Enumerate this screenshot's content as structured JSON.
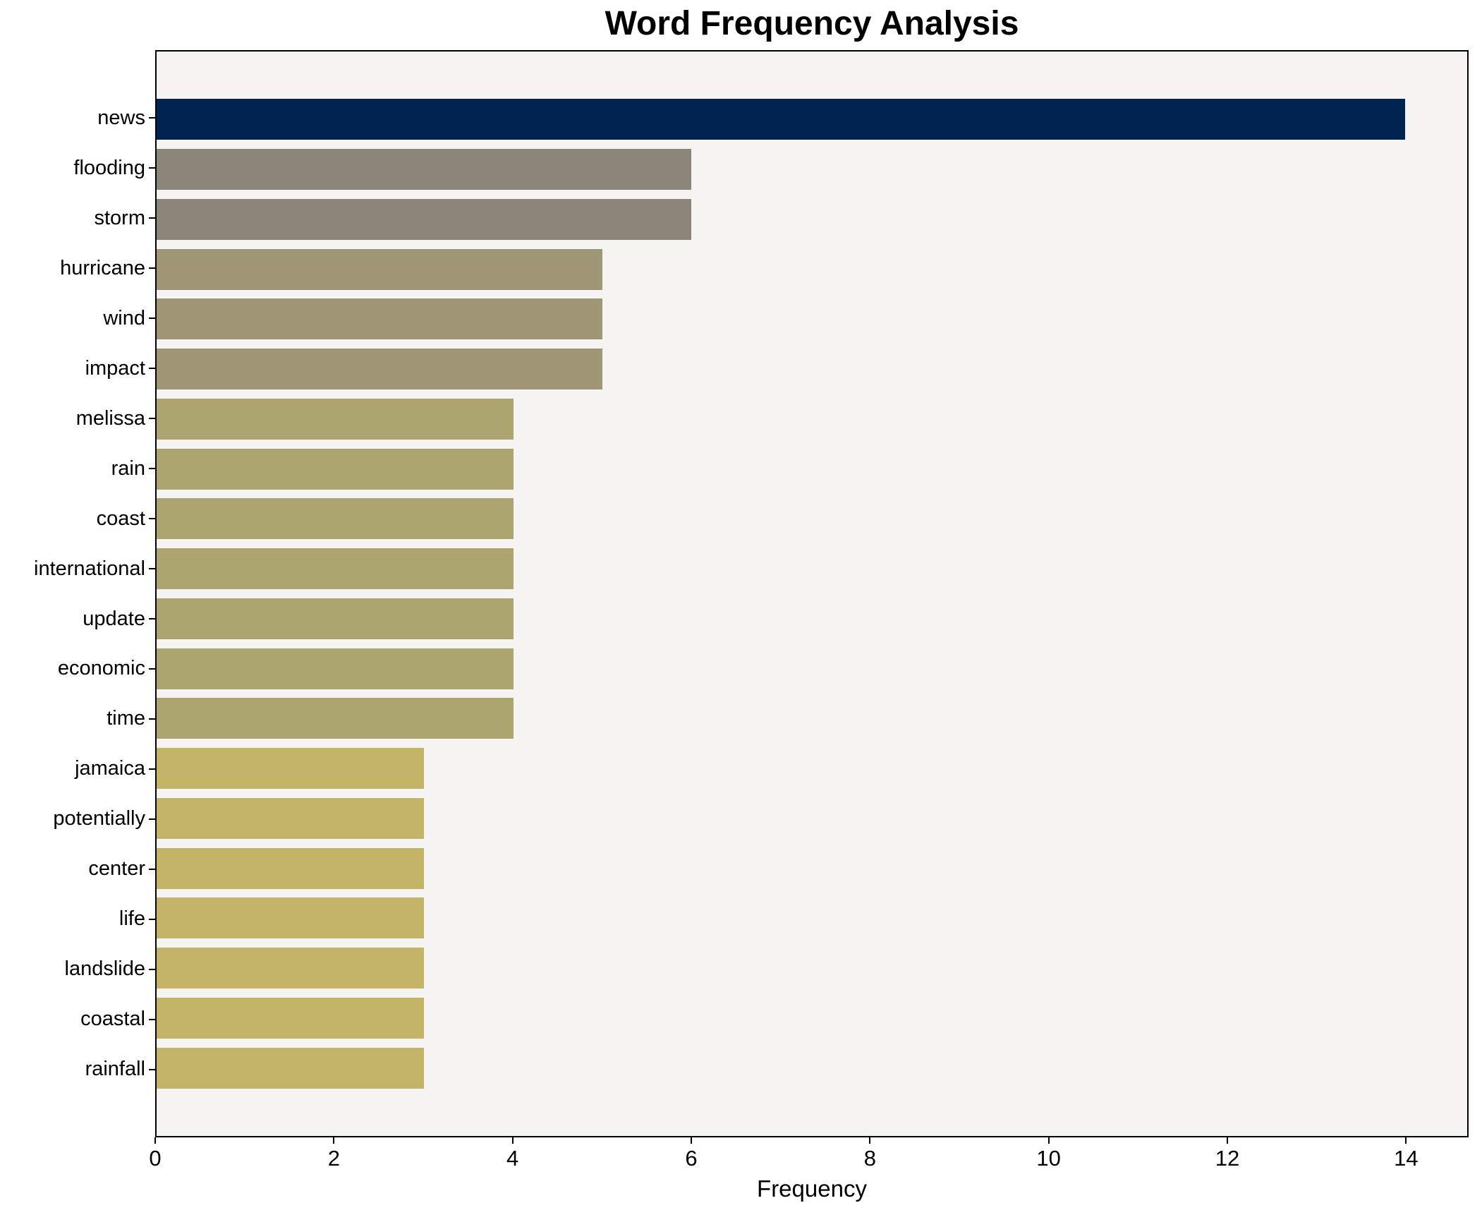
{
  "title": "Word Frequency Analysis",
  "chart_data": {
    "type": "bar",
    "orientation": "horizontal",
    "title": "Word Frequency Analysis",
    "xlabel": "Frequency",
    "ylabel": "",
    "categories": [
      "news",
      "flooding",
      "storm",
      "hurricane",
      "wind",
      "impact",
      "melissa",
      "rain",
      "coast",
      "international",
      "update",
      "economic",
      "time",
      "jamaica",
      "potentially",
      "center",
      "life",
      "landslide",
      "coastal",
      "rainfall"
    ],
    "values": [
      14,
      6,
      6,
      5,
      5,
      5,
      4,
      4,
      4,
      4,
      4,
      4,
      4,
      3,
      3,
      3,
      3,
      3,
      3,
      3
    ],
    "bar_colors": [
      "#00234F",
      "#8B8679",
      "#8B8679",
      "#9E9674",
      "#9E9674",
      "#9E9674",
      "#ADA56F",
      "#ADA56F",
      "#ADA56F",
      "#ADA56F",
      "#ADA56F",
      "#ADA56F",
      "#ADA56F",
      "#C4B467",
      "#C4B467",
      "#C4B467",
      "#C4B467",
      "#C4B467",
      "#C4B467",
      "#C4B467"
    ],
    "xlim": [
      0,
      14.7
    ],
    "xticks": [
      0,
      2,
      4,
      6,
      8,
      10,
      12,
      14
    ],
    "grid": false,
    "legend": null,
    "plot_background": "#F5F4F2",
    "figure_background": "#FFFFFF",
    "spine_color": "#000000",
    "text_color": "#000000"
  }
}
